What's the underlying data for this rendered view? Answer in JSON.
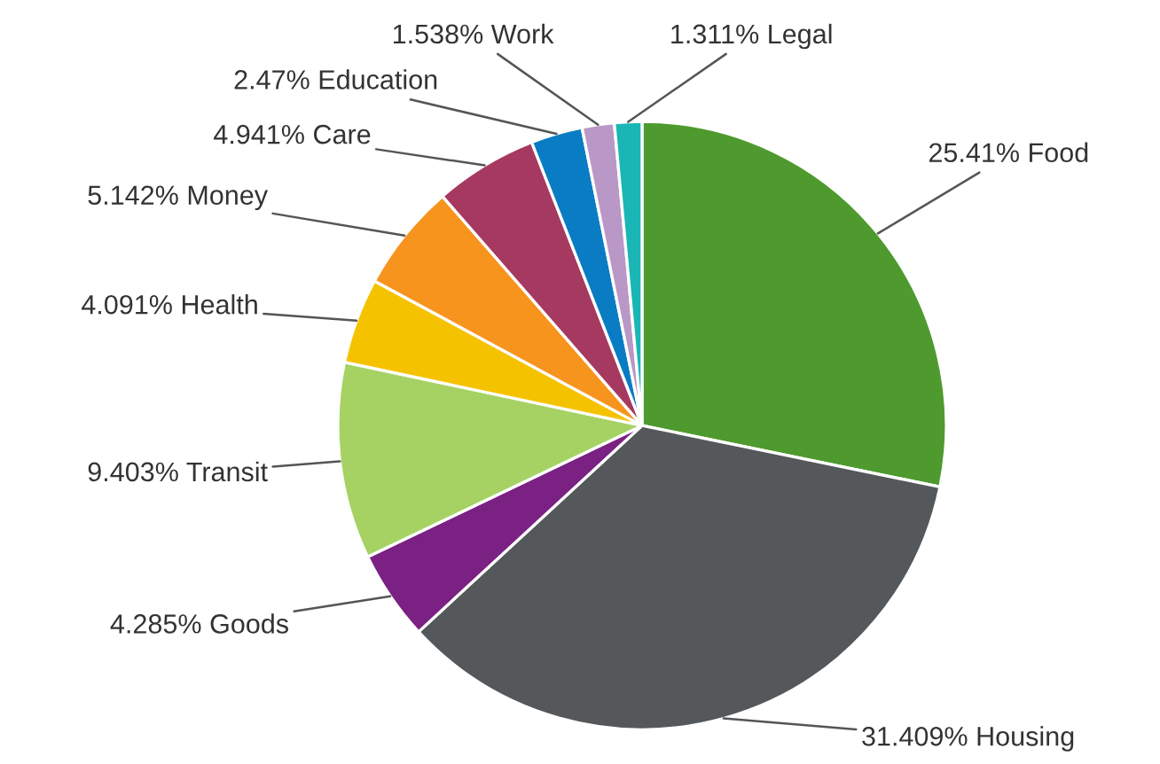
{
  "chart_data": {
    "type": "pie",
    "categories": [
      "Food",
      "Housing",
      "Goods",
      "Transit",
      "Health",
      "Money",
      "Care",
      "Education",
      "Work",
      "Legal"
    ],
    "values": [
      25.41,
      31.409,
      4.285,
      9.403,
      4.091,
      5.142,
      4.941,
      2.47,
      1.538,
      1.311
    ],
    "value_labels": [
      "25.41%",
      "31.409%",
      "4.285%",
      "9.403%",
      "4.091%",
      "5.142%",
      "4.941%",
      "2.47%",
      "1.538%",
      "1.311%"
    ],
    "colors": [
      "#4e9a2e",
      "#54585a",
      "#7b2183",
      "#a5d263",
      "#f5c200",
      "#f7941d",
      "#a6395f",
      "#0a7cc4",
      "#b997c6",
      "#1ab6b6"
    ]
  }
}
